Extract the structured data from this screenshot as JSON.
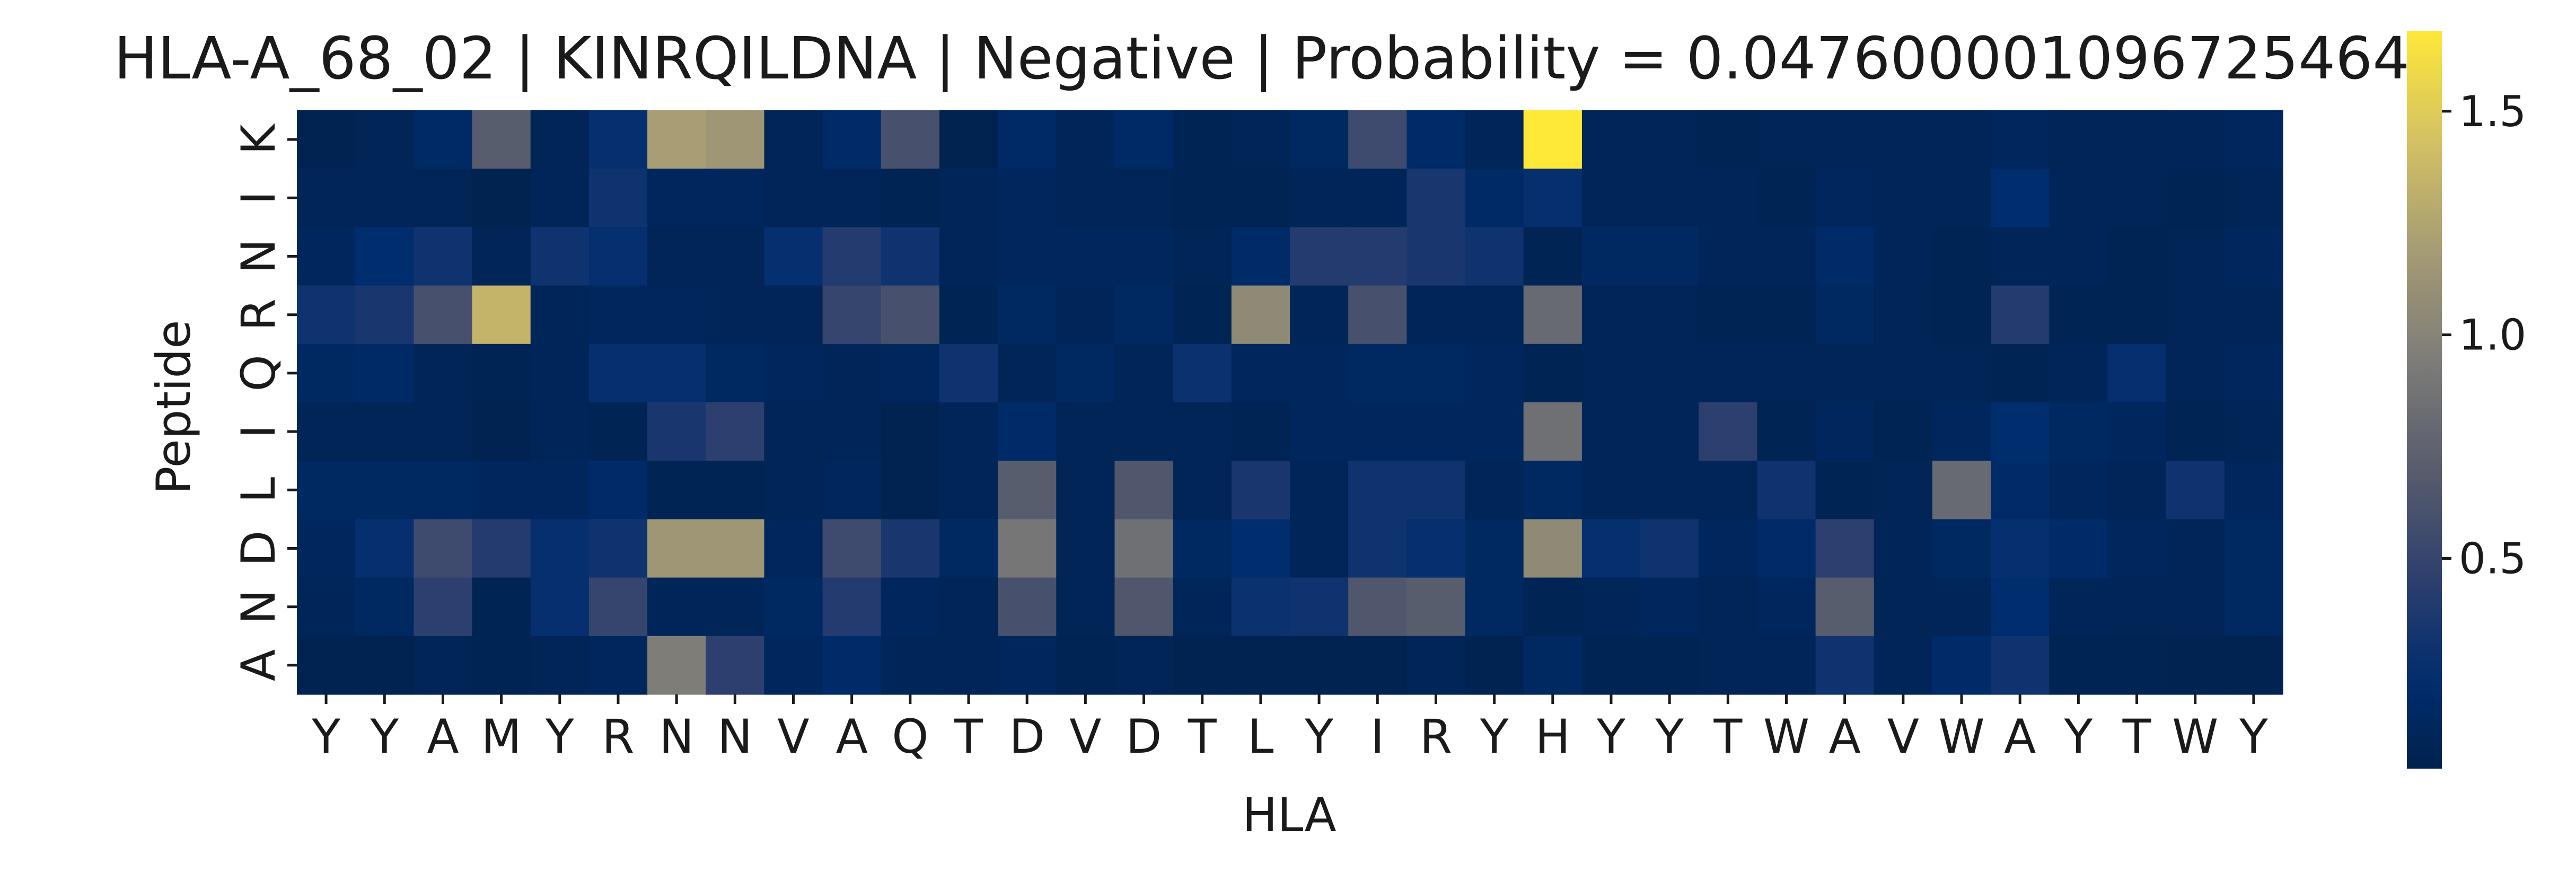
{
  "chart_data": {
    "type": "heatmap",
    "title": "HLA-A_68_02 | KINRQILDNA | Negative | Probability = 0.047600001096725464",
    "xlabel": "HLA",
    "ylabel": "Peptide",
    "x_categories": [
      "Y",
      "Y",
      "A",
      "M",
      "Y",
      "R",
      "N",
      "N",
      "V",
      "A",
      "Q",
      "T",
      "D",
      "V",
      "D",
      "T",
      "L",
      "Y",
      "I",
      "R",
      "Y",
      "H",
      "Y",
      "Y",
      "T",
      "W",
      "A",
      "V",
      "W",
      "A",
      "Y",
      "T",
      "W",
      "Y"
    ],
    "y_categories": [
      "K",
      "I",
      "N",
      "R",
      "Q",
      "I",
      "L",
      "D",
      "N",
      "A"
    ],
    "colormap": "cividis",
    "colorbar": {
      "vmin": 0.03,
      "vmax": 1.68,
      "ticks": [
        0.5,
        1.0,
        1.5
      ],
      "tick_labels": [
        "0.5",
        "1.0",
        "1.5"
      ]
    },
    "values": [
      [
        0.05,
        0.08,
        0.18,
        0.7,
        0.08,
        0.25,
        1.2,
        1.15,
        0.08,
        0.2,
        0.6,
        0.04,
        0.18,
        0.1,
        0.18,
        0.06,
        0.08,
        0.15,
        0.55,
        0.2,
        0.1,
        1.68,
        0.08,
        0.08,
        0.06,
        0.08,
        0.08,
        0.08,
        0.08,
        0.12,
        0.08,
        0.08,
        0.1,
        0.12
      ],
      [
        0.08,
        0.1,
        0.08,
        0.04,
        0.1,
        0.3,
        0.12,
        0.12,
        0.08,
        0.1,
        0.06,
        0.1,
        0.12,
        0.1,
        0.08,
        0.06,
        0.06,
        0.1,
        0.1,
        0.35,
        0.18,
        0.25,
        0.1,
        0.1,
        0.1,
        0.06,
        0.12,
        0.08,
        0.1,
        0.22,
        0.1,
        0.08,
        0.06,
        0.08
      ],
      [
        0.12,
        0.22,
        0.3,
        0.08,
        0.3,
        0.25,
        0.08,
        0.08,
        0.25,
        0.4,
        0.3,
        0.1,
        0.12,
        0.12,
        0.12,
        0.08,
        0.2,
        0.4,
        0.4,
        0.35,
        0.3,
        0.06,
        0.15,
        0.15,
        0.1,
        0.1,
        0.2,
        0.1,
        0.06,
        0.1,
        0.1,
        0.06,
        0.08,
        0.12
      ],
      [
        0.3,
        0.35,
        0.6,
        1.35,
        0.1,
        0.12,
        0.12,
        0.1,
        0.08,
        0.5,
        0.6,
        0.06,
        0.15,
        0.1,
        0.15,
        0.06,
        1.05,
        0.1,
        0.6,
        0.1,
        0.1,
        0.8,
        0.08,
        0.08,
        0.06,
        0.06,
        0.15,
        0.08,
        0.06,
        0.4,
        0.06,
        0.06,
        0.08,
        0.08
      ],
      [
        0.15,
        0.18,
        0.08,
        0.06,
        0.1,
        0.25,
        0.25,
        0.15,
        0.12,
        0.1,
        0.12,
        0.3,
        0.08,
        0.15,
        0.08,
        0.28,
        0.12,
        0.12,
        0.15,
        0.15,
        0.12,
        0.06,
        0.1,
        0.1,
        0.1,
        0.1,
        0.08,
        0.1,
        0.08,
        0.06,
        0.1,
        0.25,
        0.08,
        0.12
      ],
      [
        0.08,
        0.08,
        0.08,
        0.05,
        0.1,
        0.06,
        0.35,
        0.45,
        0.08,
        0.1,
        0.05,
        0.1,
        0.2,
        0.08,
        0.08,
        0.08,
        0.06,
        0.12,
        0.12,
        0.12,
        0.12,
        0.85,
        0.1,
        0.1,
        0.45,
        0.06,
        0.12,
        0.06,
        0.12,
        0.22,
        0.15,
        0.12,
        0.06,
        0.08
      ],
      [
        0.15,
        0.15,
        0.15,
        0.12,
        0.12,
        0.2,
        0.06,
        0.06,
        0.08,
        0.12,
        0.05,
        0.1,
        0.7,
        0.08,
        0.65,
        0.08,
        0.35,
        0.1,
        0.3,
        0.3,
        0.08,
        0.15,
        0.08,
        0.1,
        0.08,
        0.3,
        0.06,
        0.08,
        0.8,
        0.2,
        0.12,
        0.1,
        0.3,
        0.12
      ],
      [
        0.12,
        0.25,
        0.55,
        0.4,
        0.25,
        0.3,
        1.15,
        1.15,
        0.12,
        0.55,
        0.35,
        0.15,
        0.9,
        0.08,
        0.85,
        0.15,
        0.22,
        0.1,
        0.3,
        0.25,
        0.15,
        1.05,
        0.25,
        0.3,
        0.12,
        0.2,
        0.45,
        0.1,
        0.15,
        0.25,
        0.2,
        0.12,
        0.1,
        0.15
      ],
      [
        0.1,
        0.15,
        0.45,
        0.06,
        0.25,
        0.5,
        0.1,
        0.1,
        0.15,
        0.4,
        0.12,
        0.08,
        0.6,
        0.08,
        0.65,
        0.1,
        0.28,
        0.3,
        0.65,
        0.7,
        0.15,
        0.06,
        0.1,
        0.12,
        0.08,
        0.12,
        0.7,
        0.08,
        0.1,
        0.22,
        0.1,
        0.08,
        0.08,
        0.15
      ],
      [
        0.05,
        0.05,
        0.08,
        0.06,
        0.08,
        0.12,
        0.95,
        0.45,
        0.12,
        0.2,
        0.1,
        0.08,
        0.12,
        0.06,
        0.08,
        0.05,
        0.05,
        0.05,
        0.05,
        0.1,
        0.05,
        0.15,
        0.06,
        0.06,
        0.08,
        0.08,
        0.3,
        0.1,
        0.2,
        0.3,
        0.06,
        0.06,
        0.05,
        0.05
      ]
    ]
  }
}
